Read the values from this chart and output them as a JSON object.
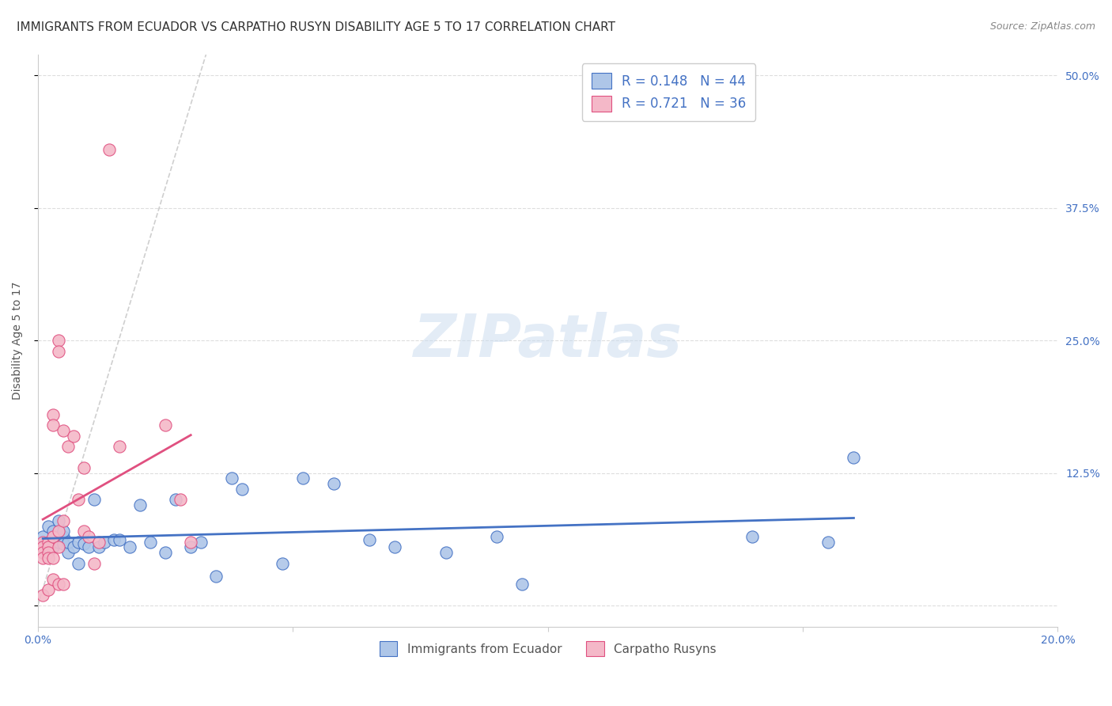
{
  "title": "IMMIGRANTS FROM ECUADOR VS CARPATHO RUSYN DISABILITY AGE 5 TO 17 CORRELATION CHART",
  "source_text": "Source: ZipAtlas.com",
  "ylabel": "Disability Age 5 to 17",
  "title_fontsize": 11,
  "title_color": "#333333",
  "source_fontsize": 9,
  "background_color": "#ffffff",
  "watermark_text": "ZIPatlas",
  "xlim": [
    0.0,
    0.2
  ],
  "ylim": [
    -0.02,
    0.52
  ],
  "yticks": [
    0.0,
    0.125,
    0.25,
    0.375,
    0.5
  ],
  "ytick_labels": [
    "",
    "12.5%",
    "25.0%",
    "37.5%",
    "50.0%"
  ],
  "xticks": [
    0.0,
    0.05,
    0.1,
    0.15,
    0.2
  ],
  "xtick_labels": [
    "0.0%",
    "",
    "",
    "",
    "20.0%"
  ],
  "blue_scatter_x": [
    0.001,
    0.002,
    0.002,
    0.003,
    0.003,
    0.003,
    0.004,
    0.004,
    0.005,
    0.005,
    0.005,
    0.006,
    0.006,
    0.007,
    0.008,
    0.008,
    0.009,
    0.01,
    0.011,
    0.012,
    0.013,
    0.015,
    0.016,
    0.018,
    0.02,
    0.022,
    0.025,
    0.027,
    0.03,
    0.032,
    0.035,
    0.038,
    0.04,
    0.048,
    0.052,
    0.058,
    0.065,
    0.07,
    0.08,
    0.09,
    0.095,
    0.14,
    0.155,
    0.16
  ],
  "blue_scatter_y": [
    0.065,
    0.055,
    0.075,
    0.06,
    0.07,
    0.055,
    0.08,
    0.06,
    0.065,
    0.058,
    0.07,
    0.05,
    0.06,
    0.055,
    0.06,
    0.04,
    0.058,
    0.055,
    0.1,
    0.055,
    0.06,
    0.062,
    0.062,
    0.055,
    0.095,
    0.06,
    0.05,
    0.1,
    0.055,
    0.06,
    0.028,
    0.12,
    0.11,
    0.04,
    0.12,
    0.115,
    0.062,
    0.055,
    0.05,
    0.065,
    0.02,
    0.065,
    0.06,
    0.14
  ],
  "pink_scatter_x": [
    0.001,
    0.001,
    0.001,
    0.001,
    0.001,
    0.002,
    0.002,
    0.002,
    0.002,
    0.002,
    0.003,
    0.003,
    0.003,
    0.003,
    0.003,
    0.004,
    0.004,
    0.004,
    0.004,
    0.004,
    0.005,
    0.005,
    0.005,
    0.006,
    0.007,
    0.008,
    0.009,
    0.009,
    0.01,
    0.011,
    0.012,
    0.014,
    0.016,
    0.025,
    0.028,
    0.03
  ],
  "pink_scatter_y": [
    0.06,
    0.055,
    0.05,
    0.045,
    0.01,
    0.06,
    0.055,
    0.05,
    0.045,
    0.015,
    0.18,
    0.17,
    0.065,
    0.045,
    0.025,
    0.25,
    0.24,
    0.07,
    0.055,
    0.02,
    0.165,
    0.08,
    0.02,
    0.15,
    0.16,
    0.1,
    0.13,
    0.07,
    0.065,
    0.04,
    0.06,
    0.43,
    0.15,
    0.17,
    0.1,
    0.06
  ],
  "blue_R": 0.148,
  "blue_N": 44,
  "pink_R": 0.721,
  "pink_N": 36,
  "blue_color": "#aec6e8",
  "pink_color": "#f4b8c8",
  "blue_line_color": "#4472c4",
  "pink_line_color": "#e05080",
  "legend_text_color": "#4472c4",
  "grid_color": "#dddddd",
  "tick_color": "#4472c4",
  "axis_color": "#cccccc"
}
